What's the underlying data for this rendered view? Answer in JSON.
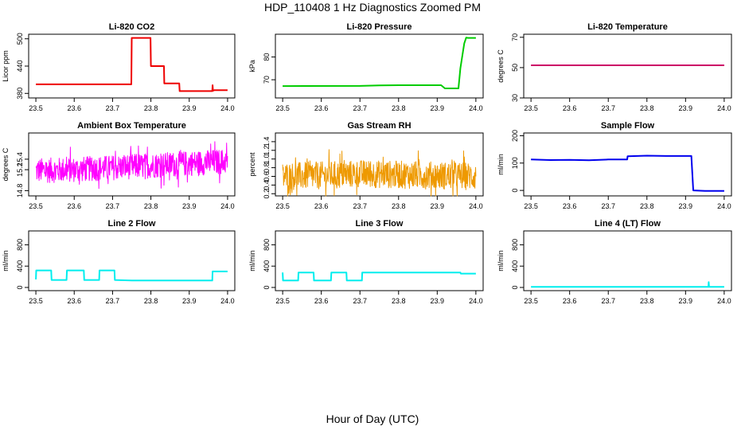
{
  "page": {
    "title": "HDP_110408  1 Hz Diagnostics Zoomed PM",
    "xlabel": "Hour of Day (UTC)"
  },
  "chart_data": [
    {
      "type": "line",
      "title": "Li-820 CO2",
      "ylabel": "Licor ppm",
      "color": "#ee0000",
      "xlim": [
        23.5,
        24.0
      ],
      "xticks": [
        "23.5",
        "23.6",
        "23.7",
        "23.8",
        "23.9",
        "24.0"
      ],
      "ylim": [
        370,
        510
      ],
      "yticks": [
        "380",
        "440",
        "500"
      ],
      "series": [
        {
          "name": "Li-820 CO2",
          "x": [
            23.5,
            23.749,
            23.75,
            23.799,
            23.8,
            23.834,
            23.835,
            23.874,
            23.875,
            23.96,
            23.961,
            23.962,
            23.965,
            24.0
          ],
          "y": [
            400,
            400,
            502,
            502,
            440,
            440,
            402,
            402,
            385,
            385,
            398,
            386,
            387,
            387
          ]
        }
      ]
    },
    {
      "type": "line",
      "title": "Li-820 Pressure",
      "ylabel": "kPa",
      "color": "#00cc00",
      "xlim": [
        23.5,
        24.0
      ],
      "xticks": [
        "23.5",
        "23.6",
        "23.7",
        "23.8",
        "23.9",
        "24.0"
      ],
      "ylim": [
        62,
        90
      ],
      "yticks": [
        "70",
        "80"
      ],
      "series": [
        {
          "name": "Li-820 Pressure",
          "x": [
            23.5,
            23.7,
            23.75,
            23.8,
            23.87,
            23.91,
            23.92,
            23.955,
            23.96,
            23.97,
            23.975,
            23.98,
            24.0
          ],
          "y": [
            67.2,
            67.3,
            67.5,
            67.6,
            67.6,
            67.6,
            66.2,
            66.2,
            75,
            86,
            88.5,
            88.4,
            88.4
          ]
        }
      ]
    },
    {
      "type": "line",
      "title": "Li-820 Temperature",
      "ylabel": "degrees C",
      "color": "#cc0066",
      "xlim": [
        23.5,
        24.0
      ],
      "xticks": [
        "23.5",
        "23.6",
        "23.7",
        "23.8",
        "23.9",
        "24.0"
      ],
      "ylim": [
        30,
        72
      ],
      "yticks": [
        "30",
        "50",
        "70"
      ],
      "series": [
        {
          "name": "Li-820 Temperature",
          "x": [
            23.5,
            24.0
          ],
          "y": [
            51.5,
            51.5
          ]
        }
      ]
    },
    {
      "type": "line",
      "title": "Ambient Box Temperature",
      "ylabel": "degrees C",
      "color": "#ff00ff",
      "noisy": true,
      "xlim": [
        23.5,
        24.0
      ],
      "xticks": [
        "23.5",
        "23.6",
        "23.7",
        "23.8",
        "23.9",
        "24.0"
      ],
      "ylim": [
        14.7,
        15.9
      ],
      "yticks": [
        "14.8",
        "15.2",
        "15.4"
      ],
      "series": [
        {
          "name": "Ambient Box Temperature",
          "x": [
            23.5,
            23.6,
            23.7,
            23.8,
            23.9,
            24.0
          ],
          "y": [
            15.18,
            15.2,
            15.24,
            15.28,
            15.32,
            15.36
          ],
          "spread": 0.24
        }
      ]
    },
    {
      "type": "line",
      "title": "Gas Stream RH",
      "ylabel": "percent",
      "color": "#ee9900",
      "noisy": true,
      "xlim": [
        23.5,
        24.0
      ],
      "xticks": [
        "23.5",
        "23.6",
        "23.7",
        "23.8",
        "23.9",
        "24.0"
      ],
      "ylim": [
        0.15,
        1.6
      ],
      "yticks": [
        "0.2",
        "0.4",
        "0.6",
        "0.8",
        "1.0",
        "1.2",
        "1.4"
      ],
      "series": [
        {
          "name": "Gas Stream RH",
          "x": [
            23.5,
            23.6,
            23.7,
            23.8,
            23.9,
            24.0
          ],
          "y": [
            0.6,
            0.62,
            0.66,
            0.64,
            0.62,
            0.6
          ],
          "spread": 0.32
        }
      ]
    },
    {
      "type": "line",
      "title": "Sample Flow",
      "ylabel": "ml/min",
      "color": "#0000ee",
      "xlim": [
        23.5,
        24.0
      ],
      "xticks": [
        "23.5",
        "23.6",
        "23.7",
        "23.8",
        "23.9",
        "24.0"
      ],
      "ylim": [
        -20,
        210
      ],
      "yticks": [
        "0",
        "100",
        "200"
      ],
      "series": [
        {
          "name": "Sample Flow",
          "x": [
            23.5,
            23.55,
            23.6,
            23.65,
            23.7,
            23.749,
            23.75,
            23.8,
            23.85,
            23.9,
            23.915,
            23.92,
            23.95,
            24.0
          ],
          "y": [
            113,
            111,
            112,
            110,
            113,
            113,
            125,
            127,
            126,
            126,
            126,
            0,
            -2,
            -2
          ]
        }
      ]
    },
    {
      "type": "line",
      "title": "Line 2 Flow",
      "ylabel": "ml/min",
      "color": "#00eeee",
      "xlim": [
        23.5,
        24.0
      ],
      "xticks": [
        "23.5",
        "23.6",
        "23.7",
        "23.8",
        "23.9",
        "24.0"
      ],
      "ylim": [
        -60,
        1060
      ],
      "yticks": [
        "0",
        "400",
        "800"
      ],
      "series": [
        {
          "name": "Line 2 Flow",
          "x": [
            23.5,
            23.501,
            23.54,
            23.541,
            23.58,
            23.581,
            23.625,
            23.626,
            23.665,
            23.666,
            23.705,
            23.706,
            23.75,
            23.96,
            23.961,
            24.0
          ],
          "y": [
            150,
            320,
            320,
            140,
            140,
            320,
            320,
            140,
            140,
            320,
            320,
            140,
            130,
            130,
            300,
            300
          ]
        }
      ]
    },
    {
      "type": "line",
      "title": "Line 3 Flow",
      "ylabel": "ml/min",
      "color": "#00eeee",
      "xlim": [
        23.5,
        24.0
      ],
      "xticks": [
        "23.5",
        "23.6",
        "23.7",
        "23.8",
        "23.9",
        "24.0"
      ],
      "ylim": [
        -60,
        1060
      ],
      "yticks": [
        "0",
        "400",
        "800"
      ],
      "series": [
        {
          "name": "Line 3 Flow",
          "x": [
            23.5,
            23.501,
            23.54,
            23.541,
            23.58,
            23.581,
            23.625,
            23.626,
            23.665,
            23.666,
            23.705,
            23.706,
            23.96,
            23.961,
            24.0
          ],
          "y": [
            280,
            130,
            130,
            280,
            280,
            130,
            130,
            280,
            280,
            130,
            130,
            280,
            280,
            260,
            260
          ]
        }
      ]
    },
    {
      "type": "line",
      "title": "Line 4 (LT) Flow",
      "ylabel": "ml/min",
      "color": "#00eeee",
      "xlim": [
        23.5,
        24.0
      ],
      "xticks": [
        "23.5",
        "23.6",
        "23.7",
        "23.8",
        "23.9",
        "24.0"
      ],
      "ylim": [
        -60,
        1060
      ],
      "yticks": [
        "0",
        "400",
        "800"
      ],
      "series": [
        {
          "name": "Line 4 (LT) Flow",
          "x": [
            23.5,
            23.959,
            23.96,
            23.961,
            23.962,
            24.0
          ],
          "y": [
            10,
            10,
            100,
            12,
            10,
            10
          ]
        }
      ]
    }
  ]
}
